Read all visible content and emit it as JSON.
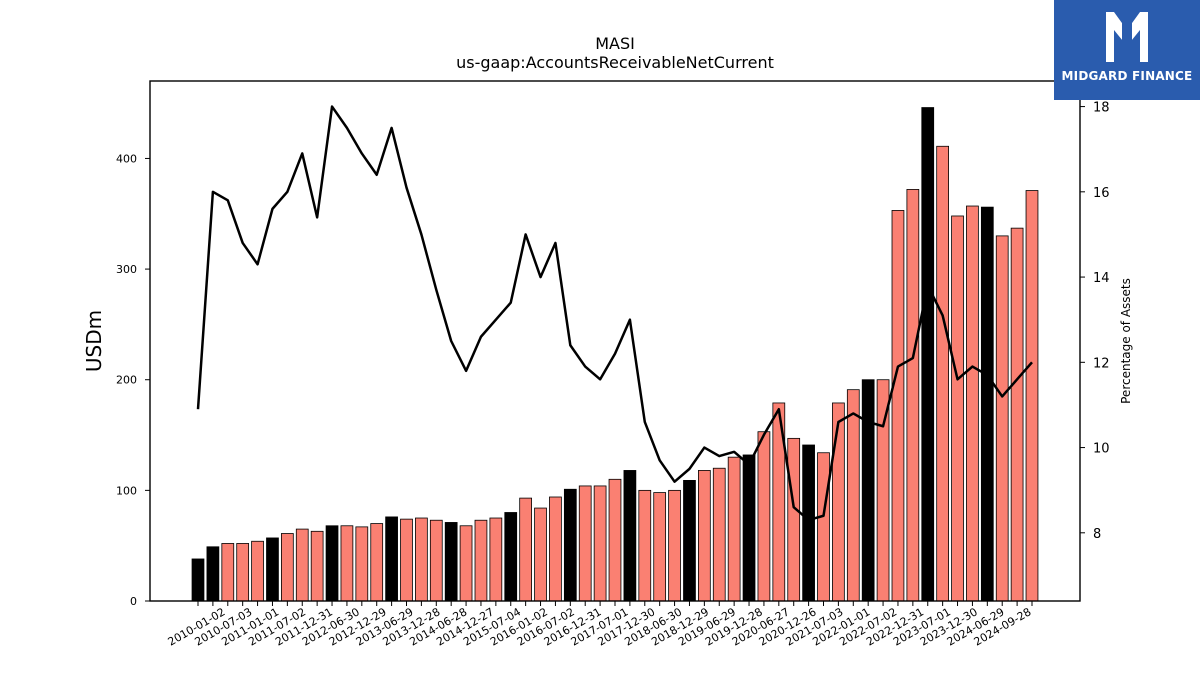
{
  "logo": {
    "text": "MIDGARD FINANCE",
    "background": "#2a5cae",
    "icon": "midgard-m-logo-icon"
  },
  "chart_data": {
    "type": "bar",
    "title": "MASI",
    "subtitle": "us-gaap:AccountsReceivableNetCurrent",
    "ylabel": "USDm",
    "y2label": "Percentage of Assets",
    "ylim": [
      0,
      470
    ],
    "y2lim": [
      6.4,
      18.6
    ],
    "yticks": [
      0,
      100,
      200,
      300,
      400
    ],
    "y2ticks": [
      8,
      10,
      12,
      14,
      16,
      18
    ],
    "grid": false,
    "colors": {
      "quarter": "#fa8072",
      "fiscal_year_end": "#000000",
      "line": "#000000"
    },
    "x_labels": [
      "2010-01-02",
      "2010-07-03",
      "2011-01-01",
      "2011-07-02",
      "2011-12-31",
      "2012-06-30",
      "2012-12-29",
      "2013-06-29",
      "2013-12-28",
      "2014-06-28",
      "2014-12-27",
      "2015-07-04",
      "2016-01-02",
      "2016-07-02",
      "2016-12-31",
      "2017-07-01",
      "2017-12-30",
      "2018-06-30",
      "2018-12-29",
      "2019-06-29",
      "2019-12-28",
      "2020-06-27",
      "2020-12-26",
      "2021-07-03",
      "2022-01-01",
      "2022-07-02",
      "2022-12-31",
      "2023-07-01",
      "2023-12-30",
      "2024-06-29",
      "2024-09-28"
    ],
    "bars": [
      38,
      49,
      52,
      52,
      54,
      57,
      61,
      65,
      63,
      68,
      68,
      67,
      70,
      76,
      74,
      75,
      73,
      71,
      68,
      73,
      75,
      80,
      93,
      84,
      94,
      101,
      104,
      104,
      110,
      118,
      100,
      98,
      100,
      109,
      118,
      120,
      130,
      132,
      153,
      179,
      147,
      141,
      134,
      179,
      191,
      200,
      200,
      353,
      372,
      446,
      411,
      348,
      357,
      356,
      330,
      337,
      371
    ],
    "bar_is_fiscal_year_end": [
      1,
      1,
      0,
      0,
      0,
      1,
      0,
      0,
      0,
      1,
      0,
      0,
      0,
      1,
      0,
      0,
      0,
      1,
      0,
      0,
      0,
      1,
      0,
      0,
      0,
      1,
      0,
      0,
      0,
      1,
      0,
      0,
      0,
      1,
      0,
      0,
      0,
      1,
      0,
      0,
      0,
      1,
      0,
      0,
      0,
      1,
      0,
      0,
      0,
      1,
      0,
      0,
      0,
      1,
      0,
      0,
      0
    ],
    "pct_of_assets": [
      10.9,
      16.0,
      15.8,
      14.8,
      14.3,
      15.6,
      16.0,
      16.9,
      15.4,
      18.0,
      17.5,
      16.9,
      16.4,
      17.5,
      16.1,
      15.0,
      13.7,
      12.5,
      11.8,
      12.6,
      13.0,
      13.4,
      15.0,
      14.0,
      14.8,
      12.4,
      11.9,
      11.6,
      12.2,
      13.0,
      10.6,
      9.7,
      9.2,
      9.5,
      10.0,
      9.8,
      9.9,
      9.6,
      10.3,
      10.9,
      8.6,
      8.3,
      8.4,
      10.6,
      10.8,
      10.6,
      10.5,
      11.9,
      12.1,
      13.8,
      13.1,
      11.6,
      11.9,
      11.7,
      11.2,
      11.6,
      12.0
    ]
  }
}
